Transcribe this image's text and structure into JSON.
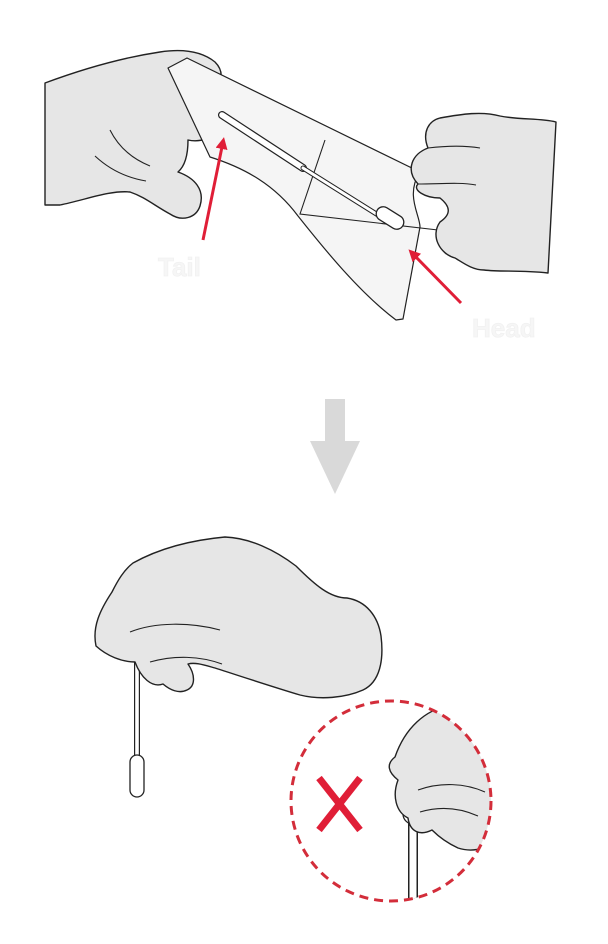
{
  "labels": {
    "tail": "Tail",
    "head": "Head"
  },
  "colors": {
    "glove_fill": "#e6e6e6",
    "outline": "#222222",
    "arrow_red": "#e01e37",
    "down_arrow": "#d9d9d9",
    "dashed_circle": "#d32d3a"
  },
  "icons": {
    "forbidden": "x-icon",
    "step_arrow": "arrow-down-icon"
  }
}
